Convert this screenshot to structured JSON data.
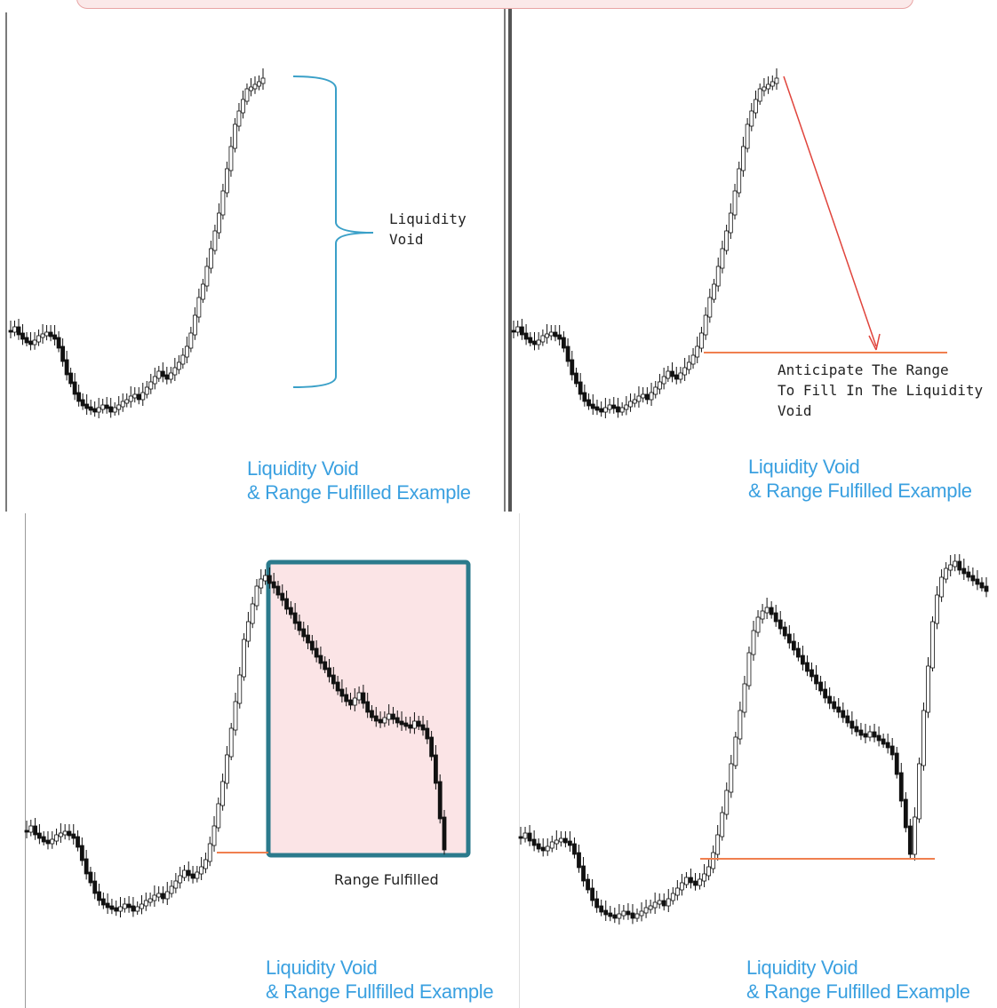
{
  "chart_data": [
    {
      "type": "candlestick",
      "panel": "top-left",
      "title": "Liquidity Void",
      "subtitle": "& Range Fulfilled Example",
      "annotations": [
        {
          "text_line1": "Liquidity",
          "text_line2": "Void",
          "shape": "curly-brace",
          "color": "#3aa0c8"
        }
      ],
      "series": [
        {
          "values": [
            372,
            368,
            375,
            380,
            384,
            386,
            383,
            378,
            376,
            374,
            377,
            380,
            390,
            405,
            420,
            430,
            442,
            450,
            455,
            458,
            460,
            462,
            459,
            456,
            458,
            462,
            459,
            456,
            452,
            450,
            446,
            444,
            448,
            442,
            436,
            430,
            424,
            418,
            422,
            425,
            420,
            414,
            408,
            400,
            390,
            375,
            355,
            335,
            320,
            300,
            280,
            260,
            240,
            215,
            190,
            165,
            140,
            125,
            112,
            100,
            98,
            95,
            92,
            88
          ]
        }
      ],
      "ylim": [
        60,
        500
      ]
    },
    {
      "type": "candlestick",
      "panel": "top-right",
      "title": "Liquidity Void",
      "subtitle": "& Range Fulfilled Example",
      "annotations": [
        {
          "text_line1": "Anticipate The Range",
          "text_line2": "To Fill In The Liquidity",
          "text_line3": "Void",
          "shape": "arrow",
          "color": "#e0443c"
        },
        {
          "shape": "horizontal-line",
          "level": 397,
          "color": "#f07f4f"
        }
      ],
      "series": [
        {
          "values": [
            372,
            368,
            375,
            380,
            384,
            386,
            383,
            378,
            376,
            374,
            377,
            380,
            390,
            405,
            420,
            430,
            442,
            450,
            455,
            458,
            460,
            462,
            459,
            456,
            458,
            462,
            459,
            456,
            452,
            450,
            446,
            444,
            448,
            442,
            436,
            430,
            424,
            418,
            422,
            425,
            420,
            414,
            408,
            400,
            390,
            375,
            355,
            335,
            320,
            300,
            280,
            260,
            240,
            215,
            190,
            165,
            140,
            125,
            112,
            100,
            98,
            95,
            92,
            88
          ]
        }
      ],
      "ylim": [
        60,
        500
      ]
    },
    {
      "type": "candlestick",
      "panel": "bottom-left",
      "title": "Liquidity Void",
      "subtitle": "& Range Fullfilled Example",
      "annotations": [
        {
          "text": "Range Fulfilled",
          "shape": "highlight-box",
          "fill": "#fbe4e6",
          "stroke": "#2b7a8c"
        },
        {
          "shape": "horizontal-line",
          "level": 960,
          "color": "#f07f4f"
        }
      ],
      "series": [
        {
          "values": [
            935,
            930,
            938,
            942,
            946,
            948,
            945,
            940,
            938,
            936,
            939,
            942,
            952,
            967,
            982,
            992,
            1004,
            1012,
            1017,
            1020,
            1022,
            1024,
            1021,
            1018,
            1020,
            1024,
            1021,
            1018,
            1014,
            1012,
            1008,
            1006,
            1010,
            1004,
            998,
            992,
            986,
            980,
            984,
            987,
            982,
            976,
            968,
            950,
            930,
            905,
            880,
            850,
            820,
            790,
            760,
            720,
            700,
            680,
            660,
            652,
            648,
            655,
            660,
            668,
            674,
            684,
            690,
            700,
            708,
            715,
            722,
            730,
            738,
            745,
            752,
            760,
            768,
            776,
            782,
            788,
            792,
            786,
            780,
            790,
            800,
            806,
            810,
            812,
            808,
            804,
            808,
            812,
            814,
            816,
            818,
            812,
            816,
            820,
            830,
            850,
            880,
            920,
            955
          ]
        }
      ],
      "ylim": [
        630,
        1060
      ]
    },
    {
      "type": "candlestick",
      "panel": "bottom-right",
      "title": "Liquidity Void",
      "subtitle": "& Range Fulfilled Example",
      "annotations": [
        {
          "shape": "horizontal-line",
          "level": 967,
          "color": "#f07f4f"
        }
      ],
      "series": [
        {
          "values": [
            942,
            938,
            945,
            950,
            954,
            956,
            953,
            948,
            946,
            944,
            947,
            950,
            960,
            975,
            990,
            1000,
            1012,
            1020,
            1025,
            1028,
            1030,
            1032,
            1029,
            1026,
            1028,
            1032,
            1029,
            1026,
            1022,
            1020,
            1016,
            1014,
            1018,
            1012,
            1006,
            1000,
            994,
            988,
            992,
            995,
            990,
            984,
            976,
            960,
            940,
            915,
            890,
            860,
            830,
            800,
            770,
            735,
            710,
            695,
            688,
            684,
            690,
            698,
            706,
            714,
            722,
            730,
            738,
            746,
            754,
            760,
            768,
            776,
            784,
            790,
            796,
            800,
            806,
            812,
            818,
            822,
            826,
            828,
            824,
            828,
            832,
            836,
            840,
            848,
            870,
            900,
            930,
            960,
            920,
            860,
            800,
            750,
            700,
            670,
            650,
            640,
            636,
            632,
            640,
            644,
            648,
            652,
            656,
            660,
            664
          ]
        }
      ],
      "ylim": [
        610,
        1070
      ]
    }
  ]
}
